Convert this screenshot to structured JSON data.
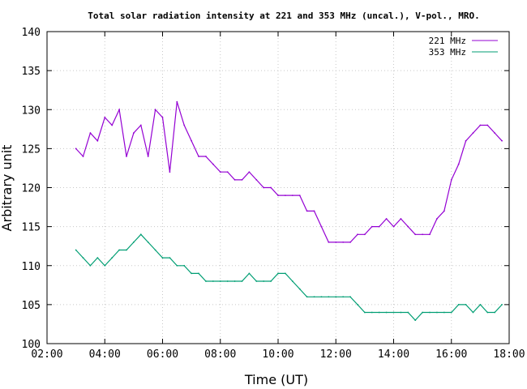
{
  "chart_data": {
    "type": "line",
    "title": "Total solar radiation intensity at 221 and 353 MHz (uncal.), V-pol., MRO.",
    "xlabel": "Time (UT)",
    "ylabel": "Arbitrary unit",
    "xlim": [
      "02:00",
      "18:00"
    ],
    "ylim": [
      100,
      140
    ],
    "x_ticks": [
      "02:00",
      "04:00",
      "06:00",
      "08:00",
      "10:00",
      "12:00",
      "14:00",
      "16:00",
      "18:00"
    ],
    "y_ticks": [
      100,
      105,
      110,
      115,
      120,
      125,
      130,
      135,
      140
    ],
    "grid": true,
    "legend_position": "top-right",
    "series": [
      {
        "name": "221 MHz",
        "color": "#9400d3",
        "x": [
          "03:00",
          "03:15",
          "03:30",
          "03:45",
          "04:00",
          "04:15",
          "04:30",
          "04:45",
          "05:00",
          "05:15",
          "05:30",
          "05:45",
          "06:00",
          "06:15",
          "06:30",
          "06:45",
          "07:00",
          "07:15",
          "07:30",
          "07:45",
          "08:00",
          "08:15",
          "08:30",
          "08:45",
          "09:00",
          "09:15",
          "09:30",
          "09:45",
          "10:00",
          "10:15",
          "10:30",
          "10:45",
          "11:00",
          "11:15",
          "11:30",
          "11:45",
          "12:00",
          "12:15",
          "12:30",
          "12:45",
          "13:00",
          "13:15",
          "13:30",
          "13:45",
          "14:00",
          "14:15",
          "14:30",
          "14:45",
          "15:00",
          "15:15",
          "15:30",
          "15:45",
          "16:00",
          "16:15",
          "16:30",
          "16:45",
          "17:00",
          "17:15",
          "17:30",
          "17:45"
        ],
        "y": [
          125,
          124,
          127,
          126,
          129,
          128,
          130,
          124,
          127,
          128,
          124,
          130,
          129,
          122,
          131,
          128,
          126,
          124,
          124,
          123,
          122,
          122,
          121,
          121,
          122,
          121,
          120,
          120,
          119,
          119,
          119,
          119,
          117,
          117,
          115,
          113,
          113,
          113,
          113,
          114,
          114,
          115,
          115,
          116,
          115,
          116,
          115,
          114,
          114,
          114,
          116,
          117,
          121,
          123,
          126,
          127,
          128,
          128,
          127,
          126
        ]
      },
      {
        "name": "353 MHz",
        "color": "#009e73",
        "x": [
          "03:00",
          "03:15",
          "03:30",
          "03:45",
          "04:00",
          "04:15",
          "04:30",
          "04:45",
          "05:00",
          "05:15",
          "05:30",
          "05:45",
          "06:00",
          "06:15",
          "06:30",
          "06:45",
          "07:00",
          "07:15",
          "07:30",
          "07:45",
          "08:00",
          "08:15",
          "08:30",
          "08:45",
          "09:00",
          "09:15",
          "09:30",
          "09:45",
          "10:00",
          "10:15",
          "10:30",
          "10:45",
          "11:00",
          "11:15",
          "11:30",
          "11:45",
          "12:00",
          "12:15",
          "12:30",
          "12:45",
          "13:00",
          "13:15",
          "13:30",
          "13:45",
          "14:00",
          "14:15",
          "14:30",
          "14:45",
          "15:00",
          "15:15",
          "15:30",
          "15:45",
          "16:00",
          "16:15",
          "16:30",
          "16:45",
          "17:00",
          "17:15",
          "17:30",
          "17:45"
        ],
        "y": [
          112,
          111,
          110,
          111,
          110,
          111,
          112,
          112,
          113,
          114,
          113,
          112,
          111,
          111,
          110,
          110,
          109,
          109,
          108,
          108,
          108,
          108,
          108,
          108,
          109,
          108,
          108,
          108,
          109,
          109,
          108,
          107,
          106,
          106,
          106,
          106,
          106,
          106,
          106,
          105,
          104,
          104,
          104,
          104,
          104,
          104,
          104,
          103,
          104,
          104,
          104,
          104,
          104,
          105,
          105,
          104,
          105,
          104,
          104,
          105
        ]
      }
    ]
  }
}
